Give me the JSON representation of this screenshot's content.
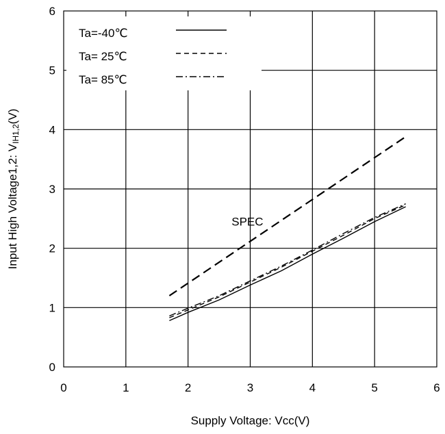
{
  "chart_data": {
    "type": "line",
    "xlabel": "Supply Voltage: Vcc(V)",
    "ylabel": {
      "main": "Input High Voltage1,2: V",
      "sub": "IH1,2",
      "unit": "(V)"
    },
    "xlim": [
      0,
      6
    ],
    "ylim": [
      0,
      6
    ],
    "x_ticks": [
      "0",
      "1",
      "2",
      "3",
      "4",
      "5",
      "6"
    ],
    "y_ticks": [
      "0",
      "1",
      "2",
      "3",
      "4",
      "5",
      "6"
    ],
    "grid": true,
    "legend_position": "top-left",
    "series": [
      {
        "name": "Ta=-40℃",
        "style": "solid",
        "x": [
          1.7,
          2.0,
          2.5,
          3.0,
          3.5,
          4.0,
          4.5,
          5.0,
          5.5
        ],
        "y": [
          0.78,
          0.92,
          1.13,
          1.38,
          1.62,
          1.9,
          2.17,
          2.45,
          2.7
        ]
      },
      {
        "name": "Ta= 25℃",
        "style": "dashed",
        "x": [
          1.7,
          2.0,
          2.5,
          3.0,
          3.5,
          4.0,
          4.5,
          5.0,
          5.5
        ],
        "y": [
          0.83,
          0.96,
          1.18,
          1.43,
          1.68,
          1.95,
          2.22,
          2.5,
          2.73
        ]
      },
      {
        "name": "Ta= 85℃",
        "style": "dashdot",
        "x": [
          1.7,
          2.0,
          2.5,
          3.0,
          3.5,
          4.0,
          4.5,
          5.0,
          5.5
        ],
        "y": [
          0.86,
          0.99,
          1.2,
          1.45,
          1.7,
          1.97,
          2.25,
          2.52,
          2.75
        ]
      },
      {
        "name": "",
        "style": "spec-dashed",
        "x": [
          1.7,
          5.5
        ],
        "y": [
          1.2,
          3.88
        ]
      }
    ],
    "annotations": [
      {
        "text": "SPEC",
        "x": 2.7,
        "y": 2.45
      }
    ]
  }
}
